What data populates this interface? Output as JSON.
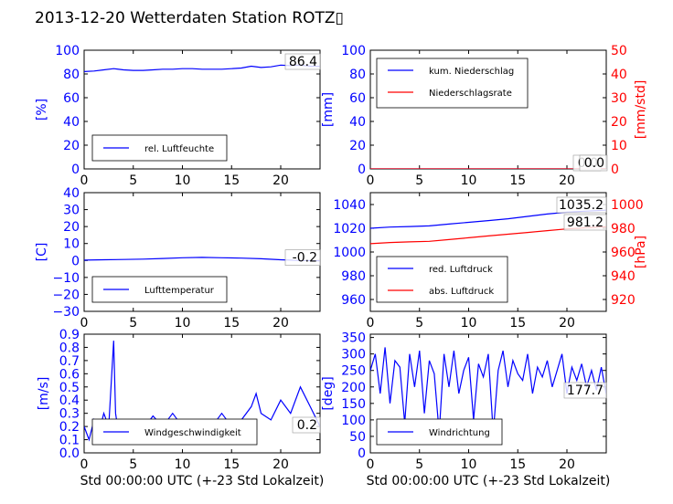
{
  "page_title": "2013-12-20 Wetterdaten Station ROTZ▯",
  "colors": {
    "blue": "#0000ff",
    "red": "#ff0000",
    "black": "#000000"
  },
  "chart_data": [
    {
      "id": "humidity",
      "type": "line",
      "xlim": [
        0,
        24
      ],
      "ylim": [
        0,
        100
      ],
      "xticks": [
        "0",
        "5",
        "10",
        "15",
        "20"
      ],
      "yticks": [
        "0",
        "20",
        "40",
        "60",
        "80",
        "100"
      ],
      "ylabel": "[%]",
      "last_value_label": "86.4",
      "legend": "upper",
      "series": [
        {
          "name": "rel. Luftfeuchte",
          "color": "blue",
          "x": [
            0,
            1,
            2,
            3,
            4,
            5,
            6,
            7,
            8,
            9,
            10,
            11,
            12,
            13,
            14,
            15,
            16,
            17,
            18,
            19,
            20,
            21,
            22,
            23,
            24
          ],
          "values": [
            82,
            82.5,
            83.5,
            84.5,
            83.5,
            83,
            83,
            83.5,
            84,
            84,
            84.5,
            84.5,
            84,
            84,
            84,
            84.5,
            85,
            86.5,
            85.5,
            86,
            87.5,
            87,
            87.5,
            86.5,
            86.4
          ]
        }
      ],
      "legend_entries": [
        "rel. Luftfeuchte"
      ]
    },
    {
      "id": "precip",
      "type": "line",
      "xlim": [
        0,
        24
      ],
      "ylim": [
        0,
        100
      ],
      "ylim_right": [
        0,
        50
      ],
      "xticks": [
        "0",
        "5",
        "10",
        "15",
        "20"
      ],
      "yticks": [
        "0",
        "20",
        "40",
        "60",
        "80",
        "100"
      ],
      "yticks_right": [
        "0",
        "10",
        "20",
        "30",
        "40",
        "50"
      ],
      "ylabel": "[mm]",
      "ylabel_right": "[mm/std]",
      "last_value_label": "0.0",
      "last_value_label_2": "0.0",
      "series": [
        {
          "name": "kum. Niederschlag",
          "color": "blue",
          "x": [
            0,
            24
          ],
          "values": [
            0,
            0
          ]
        },
        {
          "name": "Niederschlagsrate",
          "color": "red",
          "x": [
            0,
            24
          ],
          "values": [
            0,
            0
          ],
          "axis": "right"
        }
      ],
      "legend_entries": [
        "kum. Niederschlag",
        "Niederschlagsrate"
      ]
    },
    {
      "id": "temp",
      "type": "line",
      "xlim": [
        0,
        24
      ],
      "ylim": [
        -30,
        40
      ],
      "xticks": [
        "0",
        "5",
        "10",
        "15",
        "20"
      ],
      "yticks": [
        "−30",
        "−20",
        "−10",
        "0",
        "10",
        "20",
        "30",
        "40"
      ],
      "ylabel": "[C]",
      "last_value_label": "-0.2",
      "series": [
        {
          "name": "Lufttemperatur",
          "color": "blue",
          "x": [
            0,
            2,
            4,
            6,
            8,
            10,
            12,
            14,
            16,
            18,
            20,
            22,
            24
          ],
          "values": [
            0.2,
            0.4,
            0.6,
            0.8,
            1.2,
            1.6,
            1.8,
            1.6,
            1.4,
            1.0,
            0.4,
            0.0,
            -0.2
          ]
        }
      ],
      "legend_entries": [
        "Lufttemperatur"
      ]
    },
    {
      "id": "pressure",
      "type": "line",
      "xlim": [
        0,
        24
      ],
      "ylim": [
        950,
        1050
      ],
      "ylim_right": [
        910,
        1010
      ],
      "xticks": [
        "0",
        "5",
        "10",
        "15",
        "20"
      ],
      "yticks": [
        "960",
        "980",
        "1000",
        "1020",
        "1040"
      ],
      "yticks_right": [
        "920",
        "940",
        "960",
        "980",
        "1000"
      ],
      "ylabel_right": "[hPa]",
      "last_value_label": "1035.2",
      "last_value_label_2": "981.2",
      "series": [
        {
          "name": "red. Luftdruck",
          "color": "blue",
          "x": [
            0,
            2,
            4,
            6,
            8,
            10,
            12,
            14,
            16,
            18,
            20,
            22,
            24
          ],
          "values": [
            1020,
            1021,
            1021.5,
            1022,
            1023.5,
            1025,
            1026.5,
            1028,
            1030,
            1032,
            1033.5,
            1034.5,
            1035.2
          ]
        },
        {
          "name": "abs. Luftdruck",
          "color": "red",
          "axis": "right",
          "x": [
            0,
            2,
            4,
            6,
            8,
            10,
            12,
            14,
            16,
            18,
            20,
            22,
            24
          ],
          "values": [
            967,
            968,
            968.5,
            969,
            970.5,
            972,
            973.5,
            975,
            976.5,
            978,
            979.5,
            980.5,
            981.2
          ]
        }
      ],
      "legend_entries": [
        "red. Luftdruck",
        "abs. Luftdruck"
      ]
    },
    {
      "id": "wind",
      "type": "line",
      "xlim": [
        0,
        24
      ],
      "ylim": [
        0,
        0.9
      ],
      "xticks": [
        "0",
        "5",
        "10",
        "15",
        "20"
      ],
      "yticks": [
        "0.0",
        "0.1",
        "0.2",
        "0.3",
        "0.4",
        "0.5",
        "0.6",
        "0.7",
        "0.8",
        "0.9"
      ],
      "ylabel": "[m/s]",
      "xlabel": "Std 00:00:00 UTC (+-23 Std Lokalzeit)",
      "last_value_label": "0.2",
      "series": [
        {
          "name": "Windgeschwindigkeit",
          "color": "blue",
          "x": [
            0,
            0.5,
            1,
            1.5,
            2,
            2.5,
            3,
            3.2,
            3.5,
            4,
            5,
            6,
            7,
            8,
            9,
            10,
            11,
            12,
            13,
            14,
            15,
            16,
            17,
            17.5,
            18,
            19,
            20,
            21,
            22,
            23,
            24
          ],
          "values": [
            0.2,
            0.1,
            0.25,
            0.15,
            0.3,
            0.2,
            0.85,
            0.3,
            0.15,
            0.2,
            0.25,
            0.18,
            0.28,
            0.2,
            0.3,
            0.2,
            0.15,
            0.25,
            0.2,
            0.3,
            0.2,
            0.25,
            0.35,
            0.45,
            0.3,
            0.25,
            0.4,
            0.3,
            0.5,
            0.35,
            0.2
          ]
        }
      ],
      "legend_entries": [
        "Windgeschwindigkeit"
      ]
    },
    {
      "id": "winddir",
      "type": "line",
      "xlim": [
        0,
        24
      ],
      "ylim": [
        0,
        360
      ],
      "xticks": [
        "0",
        "5",
        "10",
        "15",
        "20"
      ],
      "yticks": [
        "0",
        "50",
        "100",
        "150",
        "200",
        "250",
        "300",
        "350"
      ],
      "ylabel": "[deg]",
      "xlabel": "Std 00:00:00 UTC (+-23 Std Lokalzeit)",
      "last_value_label": "177.7",
      "series": [
        {
          "name": "Windrichtung",
          "color": "blue",
          "x": [
            0,
            0.5,
            1,
            1.5,
            2,
            2.5,
            3,
            3.5,
            4,
            4.5,
            5,
            5.5,
            6,
            6.5,
            7,
            7.5,
            8,
            8.5,
            9,
            9.5,
            10,
            10.5,
            11,
            11.5,
            12,
            12.5,
            13,
            13.5,
            14,
            14.5,
            15,
            15.5,
            16,
            16.5,
            17,
            17.5,
            18,
            18.5,
            19,
            19.5,
            20,
            20.5,
            21,
            21.5,
            22,
            22.5,
            23,
            23.5,
            24
          ],
          "values": [
            250,
            300,
            180,
            320,
            150,
            280,
            260,
            90,
            300,
            200,
            310,
            120,
            280,
            240,
            60,
            300,
            200,
            310,
            180,
            250,
            290,
            100,
            270,
            230,
            300,
            60,
            250,
            310,
            200,
            280,
            240,
            220,
            300,
            180,
            260,
            230,
            280,
            200,
            250,
            300,
            180,
            260,
            220,
            270,
            200,
            250,
            190,
            260,
            177.7
          ]
        }
      ],
      "legend_entries": [
        "Windrichtung"
      ]
    }
  ]
}
